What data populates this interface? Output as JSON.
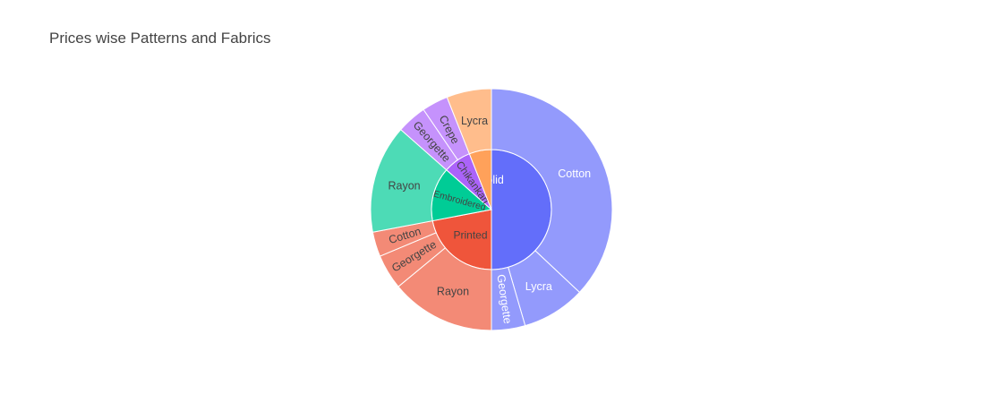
{
  "chart_data": {
    "type": "sunburst",
    "title": "Prices wise Patterns and Fabrics",
    "start_angle_deg": 90,
    "direction": "clockwise",
    "hole": true,
    "segments": [
      {
        "id": "solid",
        "label": "Solid",
        "value": 50.0,
        "color": "#636efa",
        "label_color": "#ffffff",
        "children": [
          {
            "id": "solid-cotton",
            "label": "Cotton",
            "value": 37.0,
            "color": "#939afc",
            "label_color": "#ffffff"
          },
          {
            "id": "solid-lycra",
            "label": "Lycra",
            "value": 8.5,
            "color": "#939afc",
            "label_color": "#ffffff"
          },
          {
            "id": "solid-georgette",
            "label": "Georgette",
            "value": 4.5,
            "color": "#939afc",
            "label_color": "#ffffff"
          }
        ]
      },
      {
        "id": "printed",
        "label": "Printed",
        "value": 22.0,
        "color": "#ef553b",
        "label_color": "#444444",
        "children": [
          {
            "id": "printed-rayon",
            "label": "Rayon",
            "value": 14.0,
            "color": "#f38a76",
            "label_color": "#444444"
          },
          {
            "id": "printed-georgette",
            "label": "Georgette",
            "value": 4.7,
            "color": "#f38a76",
            "label_color": "#444444"
          },
          {
            "id": "printed-cotton",
            "label": "Cotton",
            "value": 3.3,
            "color": "#f38a76",
            "label_color": "#444444"
          }
        ]
      },
      {
        "id": "embroidered",
        "label": "Embroidered",
        "value": 14.5,
        "color": "#00cc96",
        "label_color": "#444444",
        "children": [
          {
            "id": "embroidered-rayon",
            "label": "Rayon",
            "value": 14.5,
            "color": "#4ddbb6",
            "label_color": "#444444"
          }
        ]
      },
      {
        "id": "chikankari",
        "label": "Chikankari",
        "value": 7.5,
        "color": "#ab63fa",
        "label_color": "#444444",
        "children": [
          {
            "id": "chikankari-georgette",
            "label": "Georgette",
            "value": 4.0,
            "color": "#c592fc",
            "label_color": "#444444"
          },
          {
            "id": "chikankari-crepe",
            "label": "Crepe",
            "value": 3.5,
            "color": "#c592fc",
            "label_color": "#444444"
          }
        ]
      },
      {
        "id": "other",
        "label": "",
        "value": 6.0,
        "color": "#ffa15a",
        "label_color": "#444444",
        "children": [
          {
            "id": "other-lycra",
            "label": "Lycra",
            "value": 6.0,
            "color": "#ffbd8c",
            "label_color": "#444444"
          }
        ]
      }
    ]
  }
}
